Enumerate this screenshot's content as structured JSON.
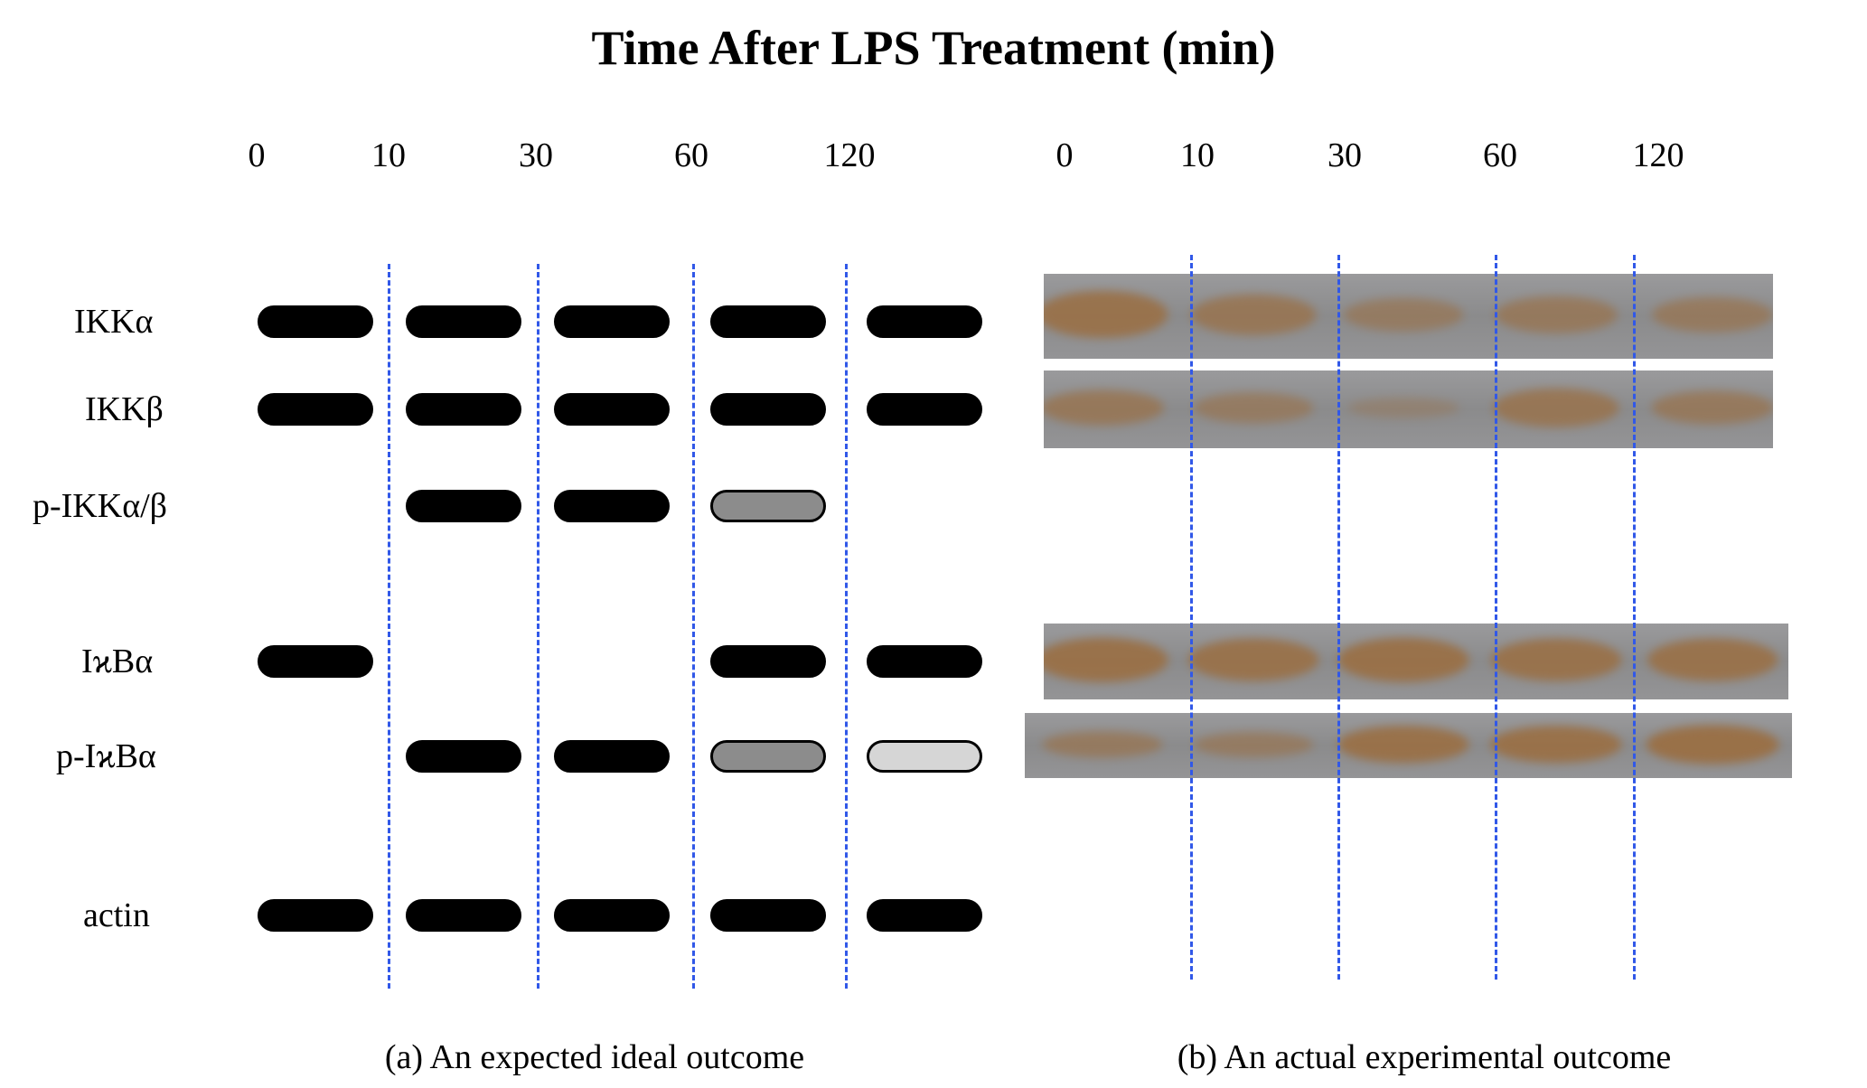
{
  "title": "Time After LPS Treatment (min)",
  "time_points": [
    "0",
    "10",
    "30",
    "60",
    "120"
  ],
  "panel_a": {
    "caption": "(a) An expected ideal outcome",
    "rows": [
      {
        "label": "IKKα",
        "bands": [
          "black",
          "black",
          "black",
          "black",
          "black"
        ]
      },
      {
        "label": "IKKβ",
        "bands": [
          "black",
          "black",
          "black",
          "black",
          "black"
        ]
      },
      {
        "label": "p-IKKα/β",
        "bands": [
          "none",
          "black",
          "black",
          "gray",
          "none"
        ]
      },
      {
        "label": "IϰBα",
        "bands": [
          "black",
          "none",
          "none",
          "black",
          "black"
        ]
      },
      {
        "label": "p-IϰBα",
        "bands": [
          "none",
          "black",
          "black",
          "gray",
          "light-gray"
        ]
      },
      {
        "label": "actin",
        "bands": [
          "black",
          "black",
          "black",
          "black",
          "black"
        ]
      }
    ]
  },
  "panel_b": {
    "caption": "(b) An actual experimental outcome",
    "blots": [
      {
        "row": "IKKα",
        "intensities": [
          0.85,
          0.65,
          0.45,
          0.55,
          0.5
        ]
      },
      {
        "row": "IKKβ",
        "intensities": [
          0.6,
          0.45,
          0.15,
          0.7,
          0.55
        ]
      },
      {
        "row": "IϰBα",
        "intensities": [
          0.9,
          0.85,
          0.9,
          0.85,
          0.85
        ]
      },
      {
        "row": "p-IϰBα",
        "intensities": [
          0.5,
          0.45,
          0.9,
          0.9,
          0.95
        ]
      }
    ]
  },
  "colors": {
    "band_black": "#000000",
    "band_gray": "#8c8c8c",
    "band_light_gray": "#d6d6d6",
    "divider_blue": "#3158e8",
    "blot_background": "#8b8b8c",
    "blot_band_brown": "#9a7046"
  }
}
